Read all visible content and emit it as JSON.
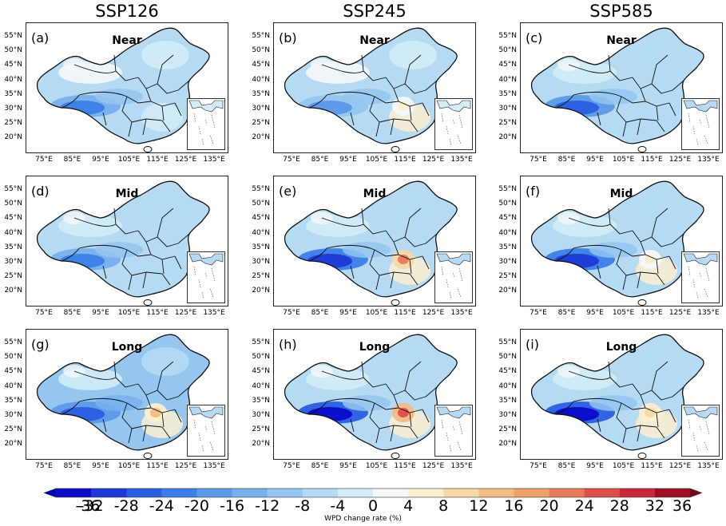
{
  "columns": [
    "SSP126",
    "SSP245",
    "SSP585"
  ],
  "lat_labels": [
    "55°N",
    "50°N",
    "45°N",
    "40°N",
    "35°N",
    "30°N",
    "25°N",
    "20°N"
  ],
  "lon_labels": [
    "75°E",
    "85°E",
    "95°E",
    "105°E",
    "115°E",
    "125°E",
    "135°E"
  ],
  "panels": [
    {
      "label": "(a)",
      "period": "Near",
      "scenario": "SSP126",
      "anomaly_mean": -4,
      "hot_spot": 0,
      "sw_anomaly": -24
    },
    {
      "label": "(b)",
      "period": "Near",
      "scenario": "SSP245",
      "anomaly_mean": -4,
      "hot_spot": 4,
      "sw_anomaly": -20
    },
    {
      "label": "(c)",
      "period": "Near",
      "scenario": "SSP585",
      "anomaly_mean": -6,
      "hot_spot": 0,
      "sw_anomaly": -28
    },
    {
      "label": "(d)",
      "period": "Mid",
      "scenario": "SSP126",
      "anomaly_mean": -6,
      "hot_spot": 0,
      "sw_anomaly": -24
    },
    {
      "label": "(e)",
      "period": "Mid",
      "scenario": "SSP245",
      "anomaly_mean": -6,
      "hot_spot": 20,
      "sw_anomaly": -32
    },
    {
      "label": "(f)",
      "period": "Mid",
      "scenario": "SSP585",
      "anomaly_mean": -6,
      "hot_spot": 4,
      "sw_anomaly": -32
    },
    {
      "label": "(g)",
      "period": "Long",
      "scenario": "SSP126",
      "anomaly_mean": -8,
      "hot_spot": 12,
      "sw_anomaly": -28
    },
    {
      "label": "(h)",
      "period": "Long",
      "scenario": "SSP245",
      "anomaly_mean": -6,
      "hot_spot": 24,
      "sw_anomaly": -36
    },
    {
      "label": "(i)",
      "period": "Long",
      "scenario": "SSP585",
      "anomaly_mean": -6,
      "hot_spot": 8,
      "sw_anomaly": -36
    }
  ],
  "colorbar": {
    "ticks": [
      "-36",
      "-32",
      "-28",
      "-24",
      "-20",
      "-16",
      "-12",
      "-8",
      "-4",
      "0",
      "4",
      "8",
      "12",
      "16",
      "20",
      "24",
      "28",
      "32",
      "36"
    ],
    "label": "WPD change rate (%)",
    "colors": [
      "#0a0ac8",
      "#1d38d6",
      "#2a5ee0",
      "#3b7ee8",
      "#5b9ae8",
      "#78b0ec",
      "#94c6f0",
      "#b4daf4",
      "#d2ecf8",
      "#f4f8fb",
      "#fbefd0",
      "#f6d8a6",
      "#f2bc84",
      "#eea06a",
      "#e67a5a",
      "#dc5048",
      "#c8283a",
      "#a00e24"
    ]
  }
}
